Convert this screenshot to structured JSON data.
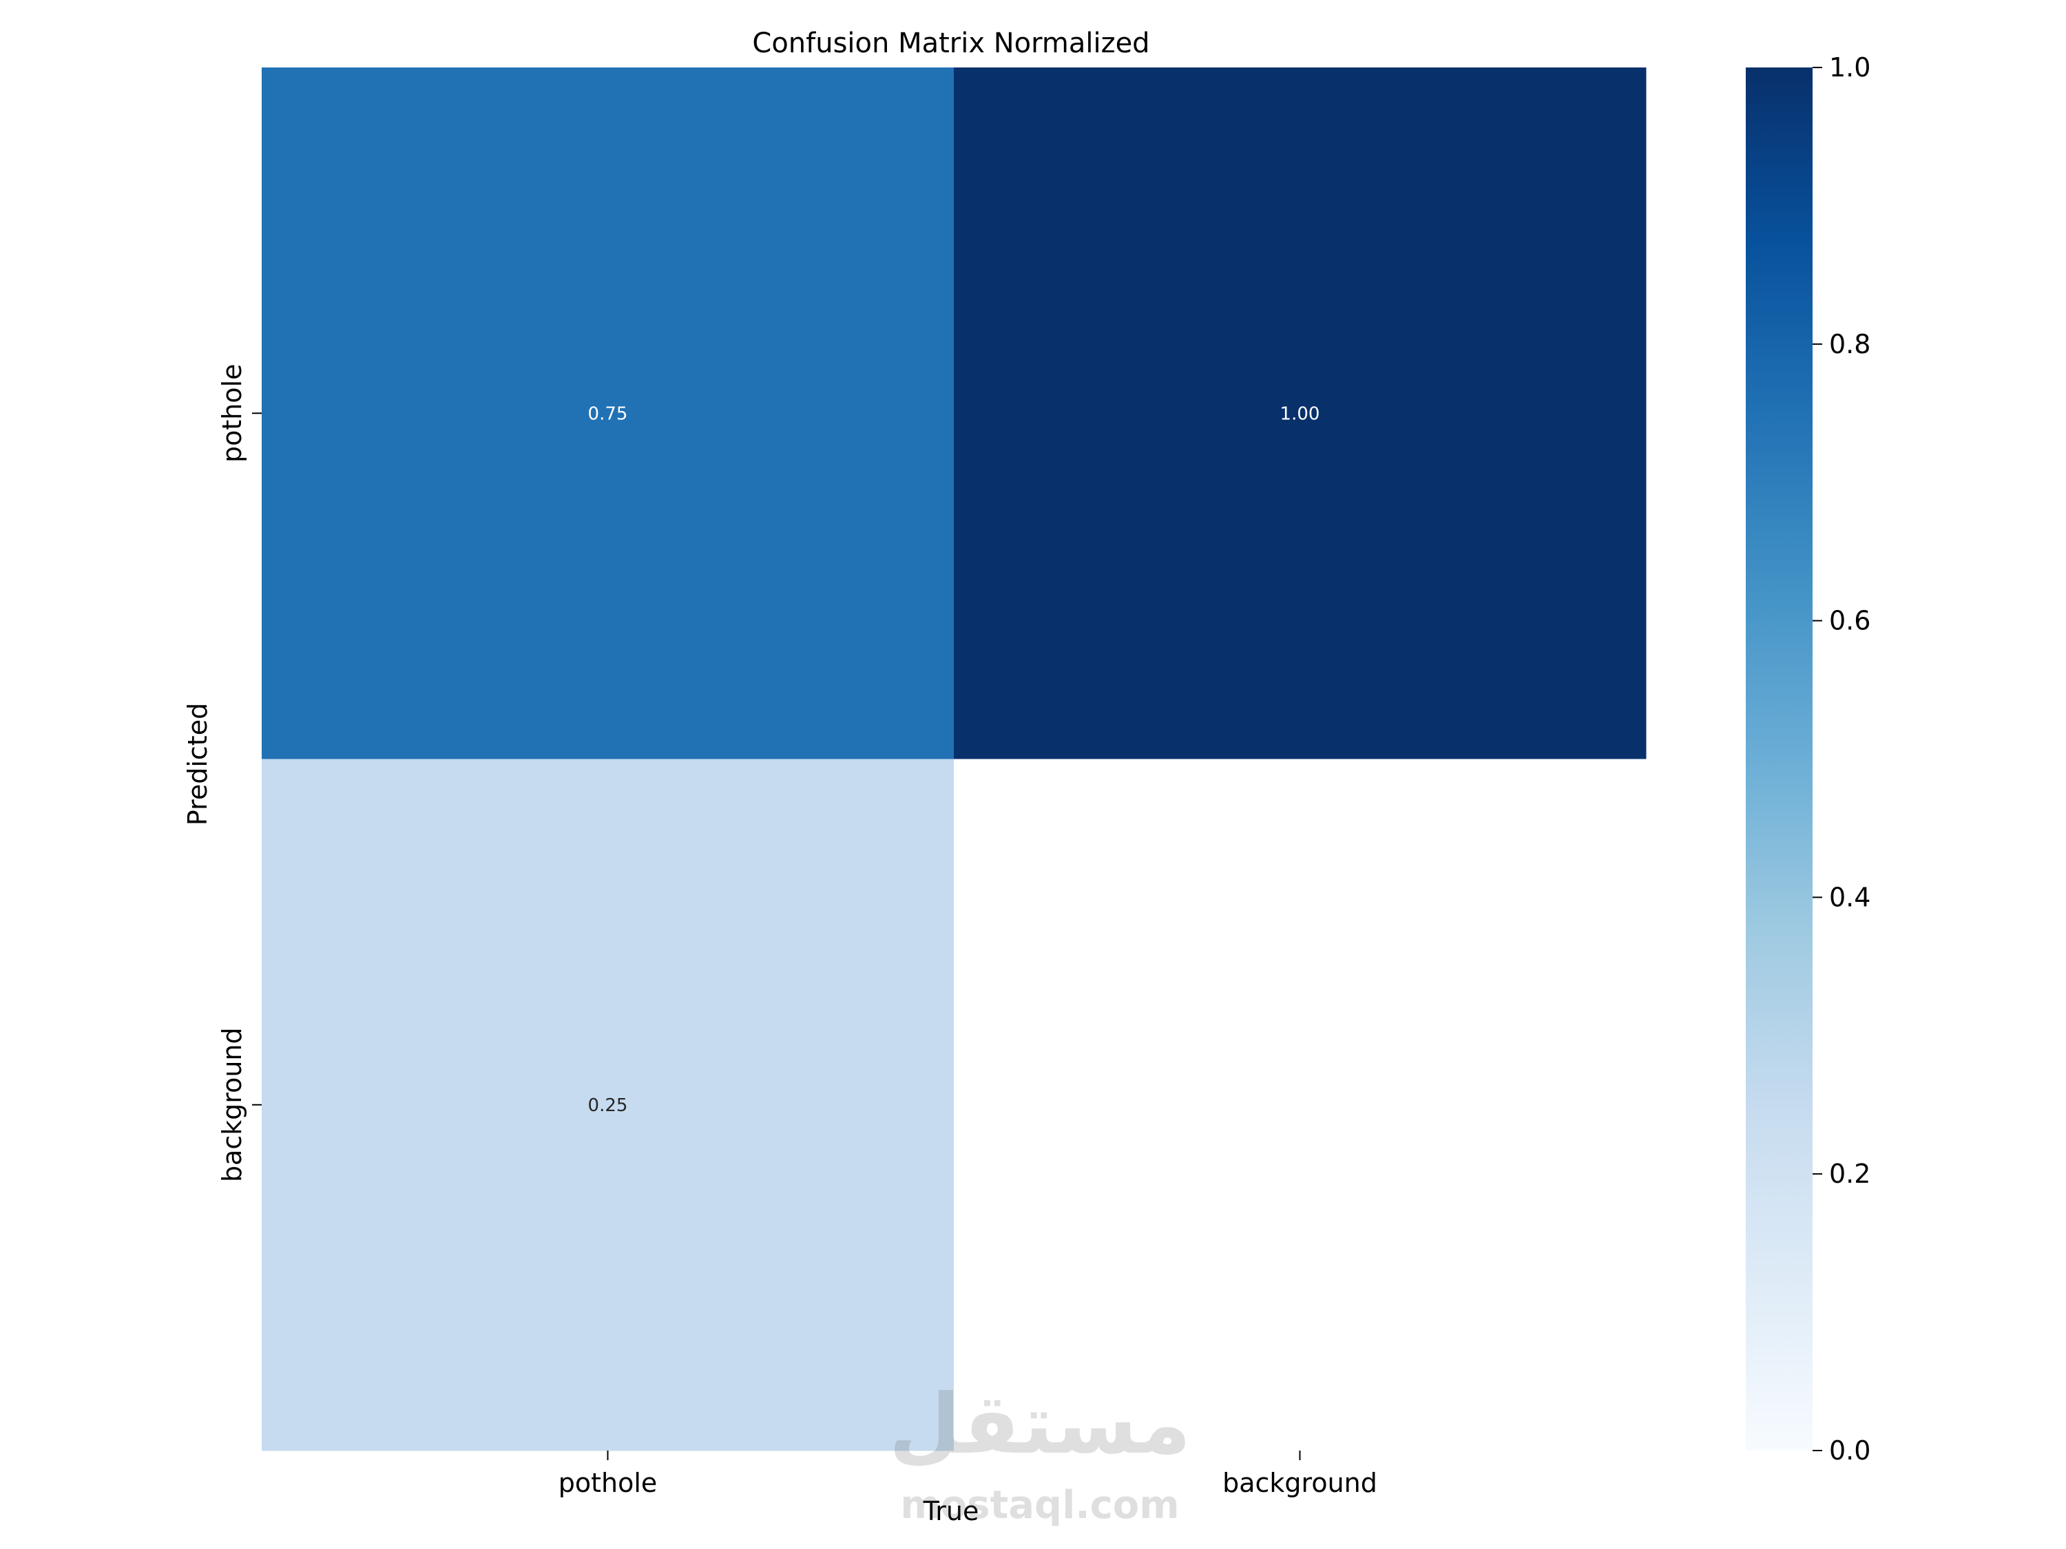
{
  "chart_data": {
    "type": "heatmap",
    "title": "Confusion Matrix Normalized",
    "xlabel": "True",
    "ylabel": "Predicted",
    "x_categories": [
      "pothole",
      "background"
    ],
    "y_categories": [
      "pothole",
      "background"
    ],
    "values": [
      [
        0.75,
        1.0
      ],
      [
        0.25,
        null
      ]
    ],
    "value_labels": [
      [
        "0.75",
        "1.00"
      ],
      [
        "0.25",
        ""
      ]
    ],
    "colorbar": {
      "range": [
        0.0,
        1.0
      ],
      "ticks": [
        0.0,
        0.2,
        0.4,
        0.6,
        0.8,
        1.0
      ],
      "tick_labels": [
        "0.0",
        "0.2",
        "0.4",
        "0.6",
        "0.8",
        "1.0"
      ],
      "colormap": "Blues"
    },
    "grid": false
  },
  "watermark": {
    "arabic": "مستقل",
    "latin": "mostaql.com"
  },
  "colors": {
    "low": "#f7fbff",
    "high": "#08306b",
    "empty_cell": "#ffffff",
    "text_dark": "#262626",
    "text_light": "#ffffff"
  }
}
